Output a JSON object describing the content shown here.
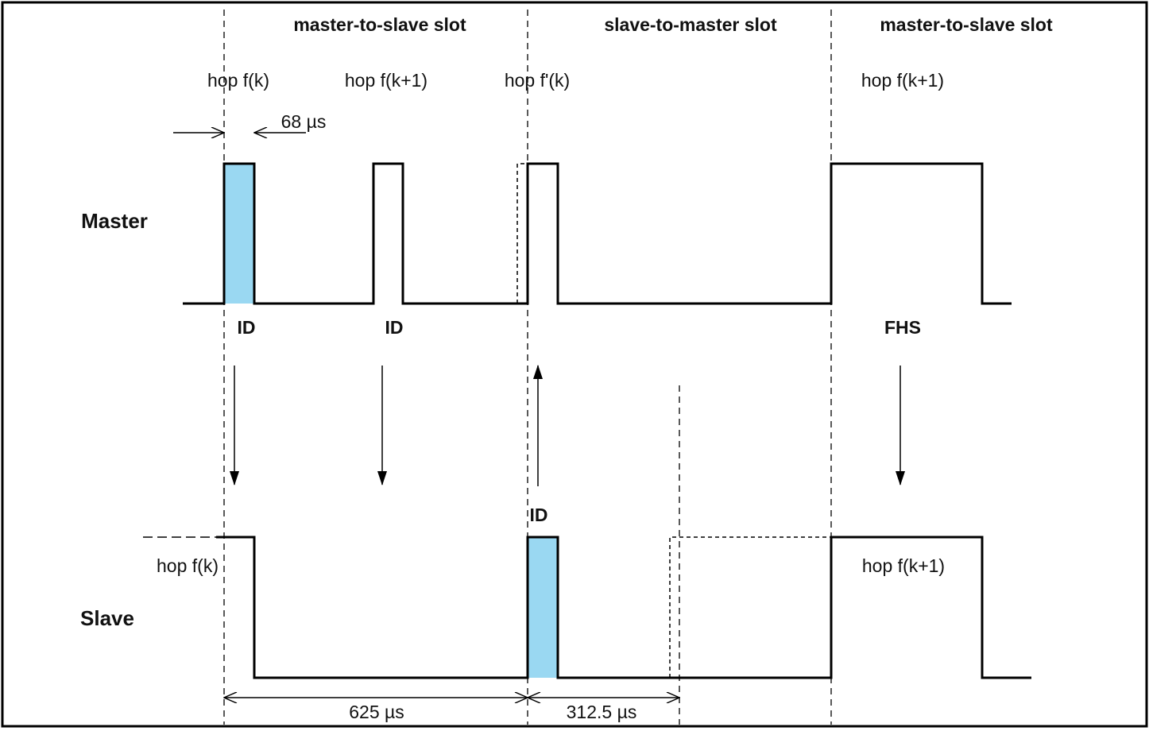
{
  "slot_headers": [
    "master-to-slave slot",
    "slave-to-master slot",
    "master-to-slave slot"
  ],
  "rows": {
    "master": "Master",
    "slave": "Slave"
  },
  "master_hops": [
    "hop f(k)",
    "hop f(k+1)",
    "hop f'(k)",
    "hop f(k+1)"
  ],
  "slave_hops": [
    "hop f(k)",
    "hop f(k+1)"
  ],
  "master_packets": [
    "ID",
    "ID",
    "FHS"
  ],
  "slave_packet": "ID",
  "dimensions": {
    "offset": "68 µs",
    "slot": "625 µs",
    "half_slot": "312.5 µs"
  },
  "colors": {
    "highlight": "#9ad8f2",
    "line": "#000000"
  }
}
